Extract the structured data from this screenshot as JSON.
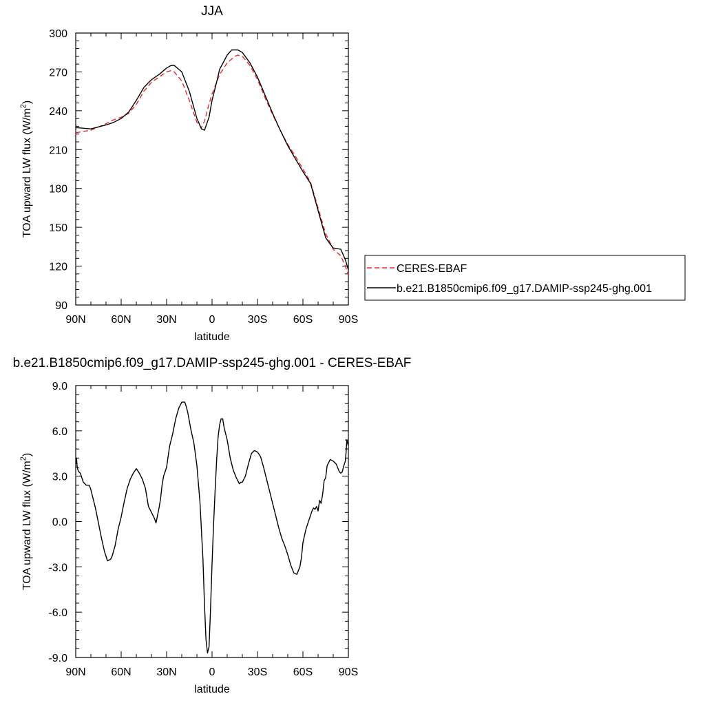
{
  "chart_data": [
    {
      "type": "line",
      "title": "JJA",
      "xlabel": "latitude",
      "ylabel": "TOA upward LW flux (W/m",
      "ylabel_sup": "2",
      "ylabel_close": ")",
      "xlim": [
        90,
        -90
      ],
      "ylim": [
        90,
        300
      ],
      "xticks": [
        {
          "value": 90,
          "label": "90N"
        },
        {
          "value": 60,
          "label": "60N"
        },
        {
          "value": 30,
          "label": "30N"
        },
        {
          "value": 0,
          "label": "0"
        },
        {
          "value": -30,
          "label": "30S"
        },
        {
          "value": -60,
          "label": "60S"
        },
        {
          "value": -90,
          "label": "90S"
        }
      ],
      "yticks": [
        {
          "value": 300,
          "label": "300"
        },
        {
          "value": 270,
          "label": "270"
        },
        {
          "value": 240,
          "label": "240"
        },
        {
          "value": 210,
          "label": "210"
        },
        {
          "value": 180,
          "label": "180"
        },
        {
          "value": 150,
          "label": "150"
        },
        {
          "value": 120,
          "label": "120"
        },
        {
          "value": 90,
          "label": "90"
        }
      ],
      "legend": {
        "placement": "right"
      },
      "series": [
        {
          "name": "CERES-EBAF",
          "color": "#e8262d",
          "dash": true,
          "x": [
            90,
            80,
            70,
            65,
            60,
            55,
            50,
            45,
            40,
            35,
            30,
            27,
            25,
            20,
            15,
            10,
            7,
            5,
            2,
            0,
            -3,
            -5,
            -10,
            -15,
            -17,
            -20,
            -25,
            -30,
            -35,
            -40,
            -45,
            -50,
            -55,
            -60,
            -65,
            -70,
            -75,
            -78,
            -80,
            -85,
            -88,
            -90
          ],
          "y": [
            223,
            225,
            230,
            233,
            235,
            238,
            245,
            255,
            262,
            266,
            270,
            271,
            270,
            263,
            248,
            231,
            227,
            232,
            245,
            253,
            262,
            268,
            277,
            282,
            283,
            282,
            275,
            264,
            250,
            237,
            225,
            214,
            205,
            195,
            185,
            165,
            145,
            138,
            133,
            128,
            120,
            113
          ]
        },
        {
          "name": "b.e21.B1850cmip6.f09_g17.DAMIP-ssp245-ghg.001",
          "color": "#000000",
          "dash": false,
          "x": [
            90,
            80,
            70,
            65,
            60,
            55,
            50,
            45,
            40,
            35,
            30,
            27,
            25,
            20,
            15,
            10,
            7,
            5,
            2,
            0,
            -3,
            -5,
            -10,
            -13,
            -15,
            -17,
            -20,
            -25,
            -30,
            -35,
            -40,
            -45,
            -50,
            -55,
            -60,
            -65,
            -70,
            -75,
            -78,
            -80,
            -85,
            -88,
            -90
          ],
          "y": [
            227,
            226,
            229,
            231,
            234,
            239,
            248,
            258,
            264,
            268,
            273,
            275,
            275,
            270,
            255,
            234,
            226,
            225,
            235,
            248,
            262,
            272,
            283,
            287,
            287,
            287,
            285,
            277,
            266,
            252,
            238,
            225,
            213,
            203,
            193,
            184,
            163,
            142,
            137,
            134,
            133,
            125,
            117
          ]
        }
      ]
    },
    {
      "type": "line",
      "title": "b.e21.B1850cmip6.f09_g17.DAMIP-ssp245-ghg.001 - CERES-EBAF",
      "xlabel": "latitude",
      "ylabel": "TOA upward LW flux (W/m",
      "ylabel_sup": "2",
      "ylabel_close": ")",
      "xlim": [
        90,
        -90
      ],
      "ylim": [
        -9,
        9
      ],
      "xticks": [
        {
          "value": 90,
          "label": "90N"
        },
        {
          "value": 60,
          "label": "60N"
        },
        {
          "value": 30,
          "label": "30N"
        },
        {
          "value": 0,
          "label": "0"
        },
        {
          "value": -30,
          "label": "30S"
        },
        {
          "value": -60,
          "label": "60S"
        },
        {
          "value": -90,
          "label": "90S"
        }
      ],
      "yticks": [
        {
          "value": 9,
          "label": "9.0"
        },
        {
          "value": 6,
          "label": "6.0"
        },
        {
          "value": 3,
          "label": "3.0"
        },
        {
          "value": 0,
          "label": "0.0"
        },
        {
          "value": -3,
          "label": "-3.0"
        },
        {
          "value": -6,
          "label": "-6.0"
        },
        {
          "value": -9,
          "label": "-9.0"
        }
      ],
      "series": [
        {
          "name": "",
          "color": "#000000",
          "dash": false,
          "x": [
            90,
            89.5,
            89,
            88.5,
            88,
            87,
            85,
            83,
            81,
            80,
            79,
            77,
            75,
            73,
            71,
            69,
            67,
            66,
            64,
            62,
            60,
            58,
            56,
            54,
            52,
            50,
            48,
            46,
            44,
            42,
            40,
            38,
            37,
            35,
            34,
            33,
            32,
            31,
            30,
            29,
            28,
            26,
            24,
            22,
            20,
            18,
            17,
            16,
            14,
            12,
            10,
            8,
            6,
            5,
            4,
            3,
            2,
            1,
            0,
            -1,
            -2,
            -3,
            -4,
            -5,
            -6,
            -7,
            -8,
            -10,
            -12,
            -14,
            -16,
            -18,
            -19,
            -20,
            -22,
            -24,
            -26,
            -28,
            -30,
            -32,
            -34,
            -36,
            -38,
            -40,
            -42,
            -44,
            -46,
            -48,
            -50,
            -52,
            -54,
            -56,
            -58,
            -59,
            -60,
            -62,
            -64,
            -66,
            -67,
            -68,
            -69,
            -70,
            -71,
            -72,
            -73,
            -74,
            -75,
            -76,
            -78,
            -80,
            -82,
            -84,
            -85,
            -86,
            -87,
            -88,
            -88.5,
            -89,
            -90
          ],
          "y": [
            3.8,
            4.2,
            3.6,
            3.4,
            3.3,
            3.2,
            2.6,
            2.4,
            2.4,
            2.1,
            1.7,
            0.9,
            -0.1,
            -1.1,
            -2.0,
            -2.6,
            -2.5,
            -2.3,
            -1.6,
            -0.5,
            0.3,
            1.3,
            2.2,
            2.8,
            3.2,
            3.5,
            3.2,
            2.8,
            2.2,
            1.0,
            0.6,
            0.2,
            -0.1,
            0.9,
            1.5,
            2.4,
            3.0,
            3.3,
            3.6,
            4.3,
            5.0,
            5.8,
            6.8,
            7.5,
            7.9,
            7.9,
            7.6,
            7.2,
            6.1,
            5.2,
            3.7,
            1.3,
            -2.5,
            -5.5,
            -7.8,
            -8.7,
            -8.3,
            -5.8,
            -2.8,
            -0.2,
            2.0,
            4.0,
            5.6,
            6.4,
            6.8,
            6.8,
            6.2,
            5.4,
            4.2,
            3.4,
            2.9,
            2.5,
            2.6,
            2.6,
            3.0,
            3.8,
            4.5,
            4.7,
            4.6,
            4.3,
            3.6,
            2.8,
            2.0,
            1.2,
            0.4,
            -0.4,
            -1.1,
            -1.6,
            -2.2,
            -2.9,
            -3.4,
            -3.5,
            -3.0,
            -2.4,
            -1.4,
            -0.5,
            0.1,
            0.7,
            0.9,
            0.8,
            1.0,
            0.7,
            1.4,
            1.2,
            1.8,
            2.7,
            2.9,
            3.7,
            4.1,
            4.0,
            3.8,
            3.3,
            3.2,
            3.3,
            3.7,
            4.0,
            4.6,
            5.4,
            5.0
          ]
        }
      ]
    }
  ]
}
